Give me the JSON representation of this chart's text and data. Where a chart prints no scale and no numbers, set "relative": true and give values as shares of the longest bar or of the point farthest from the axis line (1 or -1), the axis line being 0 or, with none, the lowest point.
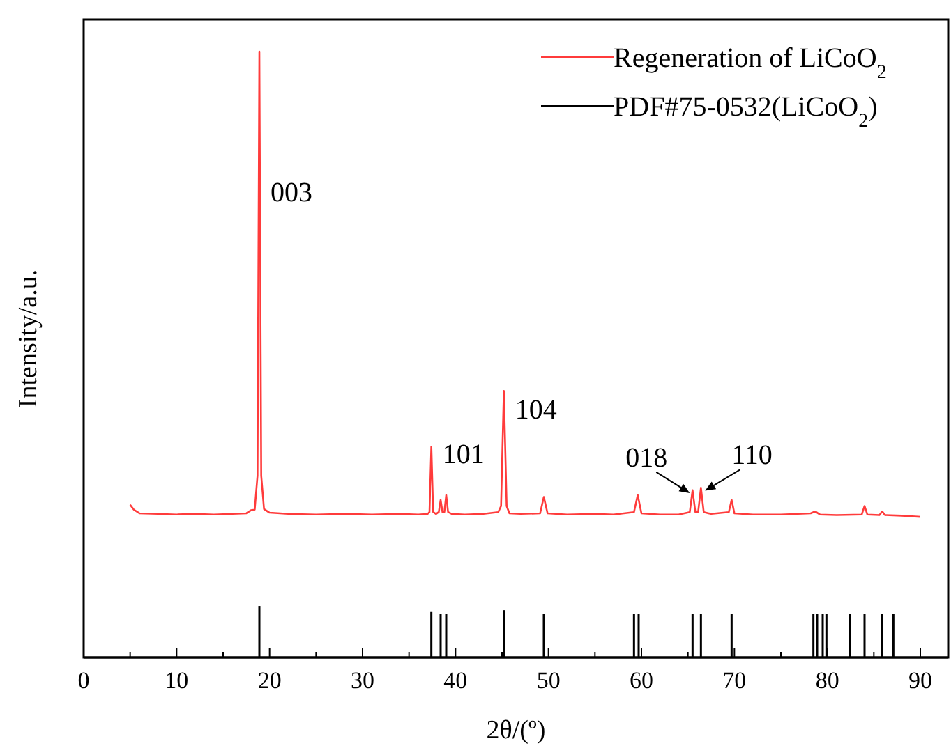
{
  "chart_data": {
    "type": "line",
    "relative": true,
    "xlabel": "2θ/(º)",
    "ylabel": "Intensity/a.u.",
    "xlim": [
      0,
      93
    ],
    "xticks": [
      0,
      {
        "value": 5,
        "label": null
      },
      10,
      {
        "value": 15,
        "label": null
      },
      20,
      {
        "value": 25,
        "label": null
      },
      30,
      {
        "value": 35,
        "label": null
      },
      40,
      {
        "value": 45,
        "label": null
      },
      50,
      {
        "value": 55,
        "label": null
      },
      60,
      {
        "value": 65,
        "label": null
      },
      70,
      {
        "value": 75,
        "label": null
      },
      80,
      {
        "value": 85,
        "label": null
      },
      90
    ],
    "legend": "top right",
    "series": [
      {
        "name": "Regeneration of LiCoO$_{2}$",
        "color": "#ff3b3b",
        "x": [
          5,
          5.4,
          6,
          8,
          10,
          12,
          14,
          16,
          17.5,
          18,
          18.4,
          18.7,
          18.9,
          19.1,
          19.4,
          20,
          22,
          25,
          28,
          31,
          34,
          36,
          37,
          37.2,
          37.4,
          37.6,
          37.9,
          38.2,
          38.4,
          38.6,
          38.8,
          39,
          39.2,
          39.6,
          41,
          43,
          44.6,
          44.9,
          45.2,
          45.5,
          45.8,
          47,
          49.1,
          49.5,
          49.9,
          52,
          55,
          57,
          59.2,
          59.6,
          60,
          62,
          64,
          65.2,
          65.5,
          65.8,
          66.1,
          66.4,
          66.7,
          67.5,
          69.4,
          69.7,
          70,
          72,
          75,
          78.2,
          78.7,
          79.2,
          81,
          83.7,
          84,
          84.3,
          85.6,
          85.9,
          86.2,
          88,
          90
        ],
        "values": [
          0.252,
          0.244,
          0.238,
          0.237,
          0.236,
          0.237,
          0.236,
          0.237,
          0.238,
          0.243,
          0.244,
          0.3,
          1.0,
          0.3,
          0.245,
          0.239,
          0.237,
          0.236,
          0.237,
          0.236,
          0.237,
          0.236,
          0.237,
          0.24,
          0.348,
          0.24,
          0.237,
          0.24,
          0.26,
          0.24,
          0.24,
          0.268,
          0.24,
          0.237,
          0.236,
          0.237,
          0.24,
          0.25,
          0.44,
          0.25,
          0.238,
          0.237,
          0.238,
          0.265,
          0.238,
          0.236,
          0.237,
          0.236,
          0.24,
          0.268,
          0.238,
          0.236,
          0.236,
          0.24,
          0.276,
          0.24,
          0.24,
          0.28,
          0.24,
          0.237,
          0.24,
          0.26,
          0.238,
          0.236,
          0.236,
          0.238,
          0.241,
          0.236,
          0.235,
          0.236,
          0.25,
          0.236,
          0.235,
          0.241,
          0.235,
          0.234,
          0.232
        ]
      },
      {
        "name": "PDF#75-0532(LiCoO$_{2}$)",
        "type": "bar",
        "color": "#000000",
        "x": [
          18.9,
          37.4,
          38.4,
          39.0,
          45.2,
          49.5,
          59.2,
          59.7,
          65.5,
          66.4,
          69.7,
          78.5,
          78.9,
          79.5,
          79.9,
          82.4,
          84.0,
          85.9,
          87.1
        ],
        "values": [
          0.085,
          0.075,
          0.072,
          0.072,
          0.078,
          0.072,
          0.072,
          0.072,
          0.072,
          0.072,
          0.072,
          0.072,
          0.072,
          0.072,
          0.072,
          0.072,
          0.072,
          0.072,
          0.072
        ]
      }
    ],
    "annotations": [
      {
        "text": "003",
        "x": 18.9,
        "y": 0.763
      },
      {
        "text": "101",
        "x": 37.4,
        "y": 0.331
      },
      {
        "text": "104",
        "x": 45.2,
        "y": 0.405
      },
      {
        "text": "018",
        "x": 65.5,
        "y": 0.276
      },
      {
        "text": "110",
        "x": 66.4,
        "y": 0.28
      }
    ]
  }
}
